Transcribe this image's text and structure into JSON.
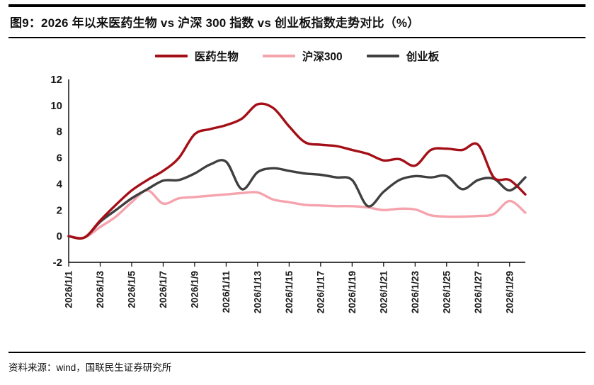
{
  "header": {
    "title": "图9：2026 年以来医药生物 vs 沪深 300 指数 vs 创业板指数走势对比（%）"
  },
  "footer": {
    "source": "资料来源：wind，国联民生证券研究所"
  },
  "chart_data": {
    "type": "line",
    "title": "2026 年以来医药生物 vs 沪深 300 指数 vs 创业板指数走势对比（%）",
    "xlabel": "",
    "ylabel": "",
    "ylim": [
      -2,
      12
    ],
    "yticks": [
      -2,
      0,
      2,
      4,
      6,
      8,
      10,
      12
    ],
    "grid": false,
    "legend_position": "top",
    "x": [
      "2026/1/1",
      "2026/1/2",
      "2026/1/3",
      "2026/1/4",
      "2026/1/5",
      "2026/1/6",
      "2026/1/7",
      "2026/1/8",
      "2026/1/9",
      "2026/1/10",
      "2026/1/11",
      "2026/1/12",
      "2026/1/13",
      "2026/1/14",
      "2026/1/15",
      "2026/1/16",
      "2026/1/17",
      "2026/1/18",
      "2026/1/19",
      "2026/1/20",
      "2026/1/21",
      "2026/1/22",
      "2026/1/23",
      "2026/1/24",
      "2026/1/25",
      "2026/1/26",
      "2026/1/27",
      "2026/1/28",
      "2026/1/29",
      "2026/1/30"
    ],
    "x_tick_labels": [
      "2026/1/1",
      "2026/1/3",
      "2026/1/5",
      "2026/1/7",
      "2026/1/9",
      "2026/1/11",
      "2026/1/13",
      "2026/1/15",
      "2026/1/17",
      "2026/1/19",
      "2026/1/21",
      "2026/1/23",
      "2026/1/25",
      "2026/1/27",
      "2026/1/29"
    ],
    "series": [
      {
        "name": "医药生物",
        "color": "#A40F17",
        "values": [
          0,
          -0.1,
          1.2,
          2.4,
          3.5,
          4.3,
          5.0,
          6.0,
          7.8,
          8.2,
          8.5,
          9.0,
          10.1,
          9.8,
          8.4,
          7.2,
          7.0,
          6.9,
          6.6,
          6.3,
          5.8,
          5.9,
          5.4,
          6.6,
          6.7,
          6.6,
          7.0,
          4.5,
          4.3,
          3.2
        ]
      },
      {
        "name": "沪深300",
        "color": "#F5A3AD",
        "values": [
          0,
          -0.1,
          0.7,
          1.5,
          2.6,
          3.5,
          2.5,
          2.9,
          3.0,
          3.1,
          3.2,
          3.3,
          3.35,
          2.8,
          2.6,
          2.4,
          2.35,
          2.3,
          2.3,
          2.2,
          2.0,
          2.1,
          2.05,
          1.6,
          1.5,
          1.5,
          1.55,
          1.7,
          2.7,
          1.8
        ]
      },
      {
        "name": "创业板",
        "color": "#3F3F3F",
        "values": [
          0,
          -0.1,
          1.1,
          2.0,
          2.9,
          3.6,
          4.25,
          4.3,
          4.8,
          5.5,
          5.7,
          3.6,
          4.9,
          5.2,
          5.0,
          4.8,
          4.7,
          4.5,
          4.3,
          2.3,
          3.4,
          4.3,
          4.6,
          4.5,
          4.6,
          3.6,
          4.3,
          4.4,
          3.5,
          4.5
        ]
      }
    ],
    "axis_color": "#000000",
    "tick_label_color": "#1a1a1a"
  }
}
